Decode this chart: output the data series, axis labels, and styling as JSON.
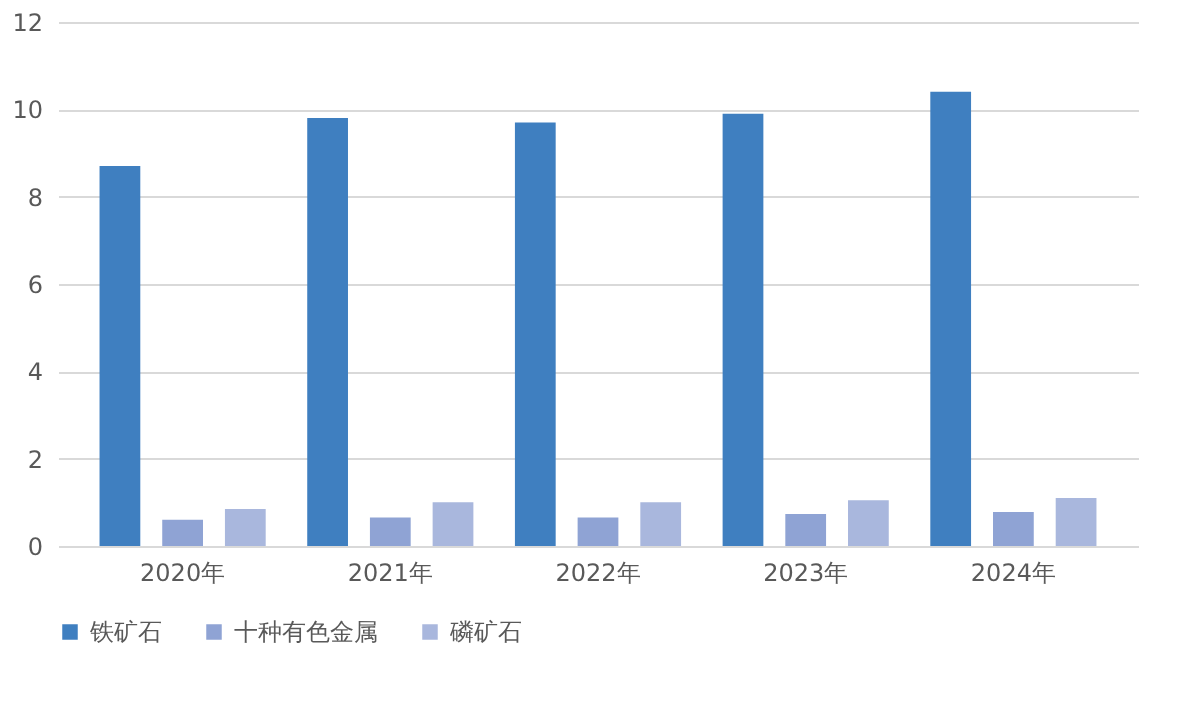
{
  "chart_data": {
    "type": "bar",
    "categories": [
      "2020年",
      "2021年",
      "2022年",
      "2023年",
      "2024年"
    ],
    "series": [
      {
        "name": "铁矿石",
        "color": "#3f7fc0",
        "values": [
          8.7,
          9.8,
          9.7,
          9.9,
          10.4
        ]
      },
      {
        "name": "十种有色金属",
        "color": "#8fa3d4",
        "values": [
          0.6,
          0.65,
          0.65,
          0.73,
          0.78
        ]
      },
      {
        "name": "磷矿石",
        "color": "#a9b7dd",
        "values": [
          0.85,
          1.0,
          1.0,
          1.05,
          1.1
        ]
      }
    ],
    "ylim": [
      0,
      12
    ],
    "yticks": [
      0,
      2,
      4,
      6,
      8,
      10,
      12
    ],
    "grid": "y",
    "legend": "bottom"
  }
}
